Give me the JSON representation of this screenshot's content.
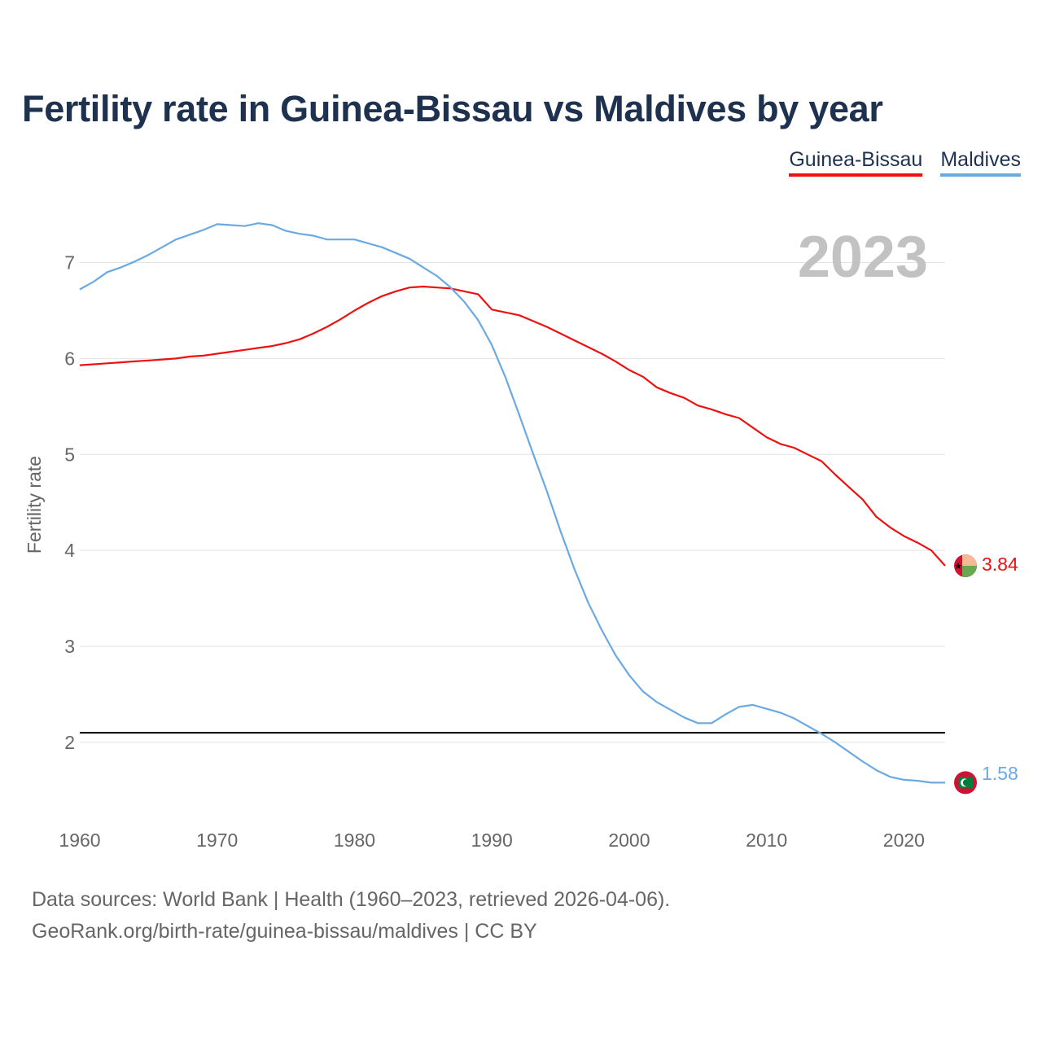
{
  "title": "Fertility rate in Guinea-Bissau vs Maldives by year",
  "year_label": "2023",
  "legend": [
    {
      "name": "Guinea-Bissau",
      "color": "#ee1111"
    },
    {
      "name": "Maldives",
      "color": "#6aa9e2"
    }
  ],
  "source": {
    "line1": "Data sources: World Bank | Health (1960–2023, retrieved 2026-04-06).",
    "line2": "GeoRank.org/birth-rate/guinea-bissau/maldives | CC BY"
  },
  "chart_data": {
    "type": "line",
    "title": "Fertility rate in Guinea-Bissau vs Maldives by year",
    "xlabel": "",
    "ylabel": "Fertility rate",
    "xlim": [
      1960,
      2023
    ],
    "ylim": [
      1.1,
      7.7
    ],
    "x_ticks": [
      1960,
      1970,
      1980,
      1990,
      2000,
      2010,
      2020
    ],
    "y_ticks": [
      2,
      3,
      4,
      5,
      6,
      7
    ],
    "reference_line": 2.1,
    "x": [
      1960,
      1961,
      1962,
      1963,
      1964,
      1965,
      1966,
      1967,
      1968,
      1969,
      1970,
      1971,
      1972,
      1973,
      1974,
      1975,
      1976,
      1977,
      1978,
      1979,
      1980,
      1981,
      1982,
      1983,
      1984,
      1985,
      1986,
      1987,
      1988,
      1989,
      1990,
      1991,
      1992,
      1993,
      1994,
      1995,
      1996,
      1997,
      1998,
      1999,
      2000,
      2001,
      2002,
      2003,
      2004,
      2005,
      2006,
      2007,
      2008,
      2009,
      2010,
      2011,
      2012,
      2013,
      2014,
      2015,
      2016,
      2017,
      2018,
      2019,
      2020,
      2021,
      2022,
      2023
    ],
    "series": [
      {
        "name": "Guinea-Bissau",
        "color": "#ee1111",
        "end_label": "3.84",
        "values": [
          5.93,
          5.94,
          5.95,
          5.96,
          5.97,
          5.98,
          5.99,
          6.0,
          6.02,
          6.03,
          6.05,
          6.07,
          6.09,
          6.11,
          6.13,
          6.16,
          6.2,
          6.26,
          6.33,
          6.41,
          6.5,
          6.58,
          6.65,
          6.7,
          6.74,
          6.75,
          6.74,
          6.73,
          6.7,
          6.67,
          6.51,
          6.48,
          6.45,
          6.39,
          6.33,
          6.26,
          6.19,
          6.12,
          6.05,
          5.97,
          5.88,
          5.81,
          5.7,
          5.64,
          5.59,
          5.51,
          5.47,
          5.42,
          5.38,
          5.28,
          5.18,
          5.11,
          5.07,
          5.0,
          4.93,
          4.79,
          4.66,
          4.53,
          4.35,
          4.24,
          4.15,
          4.08,
          4.0,
          3.84
        ]
      },
      {
        "name": "Maldives",
        "color": "#6aa9e2",
        "end_label": "1.58",
        "values": [
          6.72,
          6.8,
          6.9,
          6.95,
          7.01,
          7.08,
          7.16,
          7.24,
          7.29,
          7.34,
          7.4,
          7.39,
          7.38,
          7.41,
          7.39,
          7.33,
          7.3,
          7.28,
          7.24,
          7.24,
          7.24,
          7.2,
          7.16,
          7.1,
          7.04,
          6.95,
          6.86,
          6.74,
          6.59,
          6.4,
          6.14,
          5.8,
          5.41,
          5.01,
          4.62,
          4.2,
          3.81,
          3.46,
          3.17,
          2.91,
          2.7,
          2.53,
          2.42,
          2.34,
          2.26,
          2.2,
          2.2,
          2.29,
          2.37,
          2.39,
          2.35,
          2.31,
          2.25,
          2.17,
          2.09,
          2.0,
          1.9,
          1.8,
          1.71,
          1.64,
          1.61,
          1.6,
          1.58,
          1.58
        ]
      }
    ]
  }
}
